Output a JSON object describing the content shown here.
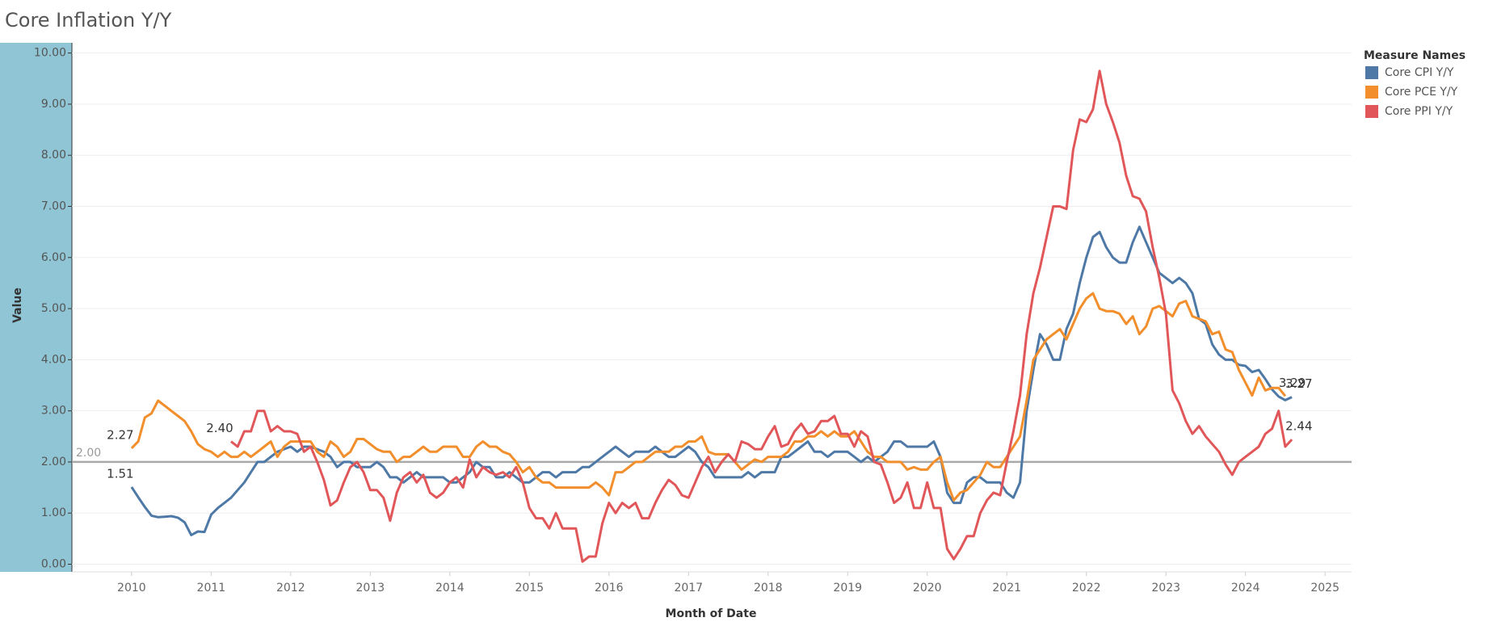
{
  "chart_data": {
    "type": "line",
    "title": "Core Inflation Y/Y",
    "x_label": "Month of Date",
    "y_label": "Value",
    "legend_title": "Measure Names",
    "legend": "right",
    "x": [
      "2010-01",
      "2010-02",
      "2010-03",
      "2010-04",
      "2010-05",
      "2010-06",
      "2010-07",
      "2010-08",
      "2010-09",
      "2010-10",
      "2010-11",
      "2010-12",
      "2011-01",
      "2011-02",
      "2011-03",
      "2011-04",
      "2011-05",
      "2011-06",
      "2011-07",
      "2011-08",
      "2011-09",
      "2011-10",
      "2011-11",
      "2011-12",
      "2012-01",
      "2012-02",
      "2012-03",
      "2012-04",
      "2012-05",
      "2012-06",
      "2012-07",
      "2012-08",
      "2012-09",
      "2012-10",
      "2012-11",
      "2012-12",
      "2013-01",
      "2013-02",
      "2013-03",
      "2013-04",
      "2013-05",
      "2013-06",
      "2013-07",
      "2013-08",
      "2013-09",
      "2013-10",
      "2013-11",
      "2013-12",
      "2014-01",
      "2014-02",
      "2014-03",
      "2014-04",
      "2014-05",
      "2014-06",
      "2014-07",
      "2014-08",
      "2014-09",
      "2014-10",
      "2014-11",
      "2014-12",
      "2015-01",
      "2015-02",
      "2015-03",
      "2015-04",
      "2015-05",
      "2015-06",
      "2015-07",
      "2015-08",
      "2015-09",
      "2015-10",
      "2015-11",
      "2015-12",
      "2016-01",
      "2016-02",
      "2016-03",
      "2016-04",
      "2016-05",
      "2016-06",
      "2016-07",
      "2016-08",
      "2016-09",
      "2016-10",
      "2016-11",
      "2016-12",
      "2017-01",
      "2017-02",
      "2017-03",
      "2017-04",
      "2017-05",
      "2017-06",
      "2017-07",
      "2017-08",
      "2017-09",
      "2017-10",
      "2017-11",
      "2017-12",
      "2018-01",
      "2018-02",
      "2018-03",
      "2018-04",
      "2018-05",
      "2018-06",
      "2018-07",
      "2018-08",
      "2018-09",
      "2018-10",
      "2018-11",
      "2018-12",
      "2019-01",
      "2019-02",
      "2019-03",
      "2019-04",
      "2019-05",
      "2019-06",
      "2019-07",
      "2019-08",
      "2019-09",
      "2019-10",
      "2019-11",
      "2019-12",
      "2020-01",
      "2020-02",
      "2020-03",
      "2020-04",
      "2020-05",
      "2020-06",
      "2020-07",
      "2020-08",
      "2020-09",
      "2020-10",
      "2020-11",
      "2020-12",
      "2021-01",
      "2021-02",
      "2021-03",
      "2021-04",
      "2021-05",
      "2021-06",
      "2021-07",
      "2021-08",
      "2021-09",
      "2021-10",
      "2021-11",
      "2021-12",
      "2022-01",
      "2022-02",
      "2022-03",
      "2022-04",
      "2022-05",
      "2022-06",
      "2022-07",
      "2022-08",
      "2022-09",
      "2022-10",
      "2022-11",
      "2022-12",
      "2023-01",
      "2023-02",
      "2023-03",
      "2023-04",
      "2023-05",
      "2023-06",
      "2023-07",
      "2023-08",
      "2023-09",
      "2023-10",
      "2023-11",
      "2023-12",
      "2024-01",
      "2024-02",
      "2024-03",
      "2024-04",
      "2024-05",
      "2024-06",
      "2024-07",
      "2024-08"
    ],
    "series": [
      {
        "name": "Core CPI Y/Y",
        "color": "#4e79a7",
        "values": [
          1.51,
          1.31,
          1.12,
          0.95,
          0.92,
          0.93,
          0.94,
          0.91,
          0.82,
          0.57,
          0.64,
          0.63,
          0.97,
          1.1,
          1.2,
          1.3,
          1.45,
          1.6,
          1.8,
          2.0,
          2.0,
          2.1,
          2.2,
          2.25,
          2.3,
          2.2,
          2.3,
          2.3,
          2.25,
          2.2,
          2.1,
          1.9,
          2.0,
          2.0,
          1.9,
          1.9,
          1.9,
          2.0,
          1.9,
          1.7,
          1.7,
          1.6,
          1.7,
          1.8,
          1.7,
          1.7,
          1.7,
          1.7,
          1.6,
          1.6,
          1.7,
          1.8,
          2.0,
          1.9,
          1.9,
          1.7,
          1.7,
          1.8,
          1.7,
          1.6,
          1.6,
          1.7,
          1.8,
          1.8,
          1.7,
          1.8,
          1.8,
          1.8,
          1.9,
          1.9,
          2.0,
          2.1,
          2.2,
          2.3,
          2.2,
          2.1,
          2.2,
          2.2,
          2.2,
          2.3,
          2.2,
          2.1,
          2.1,
          2.2,
          2.3,
          2.2,
          2.0,
          1.9,
          1.7,
          1.7,
          1.7,
          1.7,
          1.7,
          1.8,
          1.7,
          1.8,
          1.8,
          1.8,
          2.1,
          2.1,
          2.2,
          2.3,
          2.4,
          2.2,
          2.2,
          2.1,
          2.2,
          2.2,
          2.2,
          2.1,
          2.0,
          2.1,
          2.0,
          2.1,
          2.2,
          2.4,
          2.4,
          2.3,
          2.3,
          2.3,
          2.3,
          2.4,
          2.1,
          1.4,
          1.2,
          1.2,
          1.6,
          1.7,
          1.7,
          1.6,
          1.6,
          1.6,
          1.4,
          1.3,
          1.6,
          3.0,
          3.8,
          4.5,
          4.3,
          4.0,
          4.0,
          4.6,
          4.9,
          5.5,
          6.0,
          6.4,
          6.5,
          6.2,
          6.0,
          5.9,
          5.9,
          6.3,
          6.6,
          6.3,
          6.0,
          5.7,
          5.6,
          5.5,
          5.6,
          5.5,
          5.3,
          4.8,
          4.7,
          4.3,
          4.1,
          4.0,
          4.0,
          3.9,
          3.88,
          3.76,
          3.8,
          3.62,
          3.42,
          3.28,
          3.21,
          3.27
        ]
      },
      {
        "name": "Core PCE Y/Y",
        "color": "#f28e2b",
        "values": [
          2.27,
          2.4,
          2.87,
          2.95,
          3.2,
          3.1,
          3.0,
          2.9,
          2.8,
          2.6,
          2.35,
          2.25,
          2.2,
          2.1,
          2.2,
          2.1,
          2.1,
          2.2,
          2.1,
          2.2,
          2.3,
          2.4,
          2.1,
          2.3,
          2.4,
          2.4,
          2.4,
          2.4,
          2.2,
          2.1,
          2.4,
          2.3,
          2.1,
          2.2,
          2.45,
          2.45,
          2.35,
          2.25,
          2.2,
          2.2,
          2.0,
          2.1,
          2.1,
          2.2,
          2.3,
          2.2,
          2.2,
          2.3,
          2.3,
          2.3,
          2.1,
          2.1,
          2.3,
          2.4,
          2.3,
          2.3,
          2.2,
          2.15,
          2.0,
          1.8,
          1.9,
          1.7,
          1.6,
          1.6,
          1.5,
          1.5,
          1.5,
          1.5,
          1.5,
          1.5,
          1.6,
          1.5,
          1.35,
          1.8,
          1.8,
          1.9,
          2.0,
          2.0,
          2.1,
          2.2,
          2.2,
          2.2,
          2.3,
          2.3,
          2.4,
          2.4,
          2.5,
          2.2,
          2.15,
          2.15,
          2.15,
          2.0,
          1.85,
          1.95,
          2.05,
          2.0,
          2.1,
          2.1,
          2.1,
          2.2,
          2.4,
          2.4,
          2.5,
          2.5,
          2.6,
          2.5,
          2.6,
          2.5,
          2.5,
          2.6,
          2.4,
          2.2,
          2.1,
          2.1,
          2.0,
          2.0,
          2.0,
          1.85,
          1.9,
          1.85,
          1.85,
          2.0,
          2.1,
          1.6,
          1.25,
          1.4,
          1.45,
          1.6,
          1.75,
          2.0,
          1.9,
          1.9,
          2.1,
          2.3,
          2.5,
          3.2,
          4.0,
          4.2,
          4.4,
          4.5,
          4.6,
          4.4,
          4.7,
          5.0,
          5.2,
          5.3,
          5.0,
          4.95,
          4.95,
          4.9,
          4.7,
          4.85,
          4.5,
          4.65,
          5.0,
          5.05,
          4.95,
          4.85,
          5.1,
          5.15,
          4.85,
          4.8,
          4.75,
          4.5,
          4.55,
          4.2,
          4.15,
          3.8,
          3.55,
          3.3,
          3.65,
          3.4,
          3.45,
          3.45,
          3.29,
          null
        ]
      },
      {
        "name": "Core PPI Y/Y",
        "color": "#e15759",
        "values": [
          null,
          null,
          null,
          null,
          null,
          null,
          null,
          null,
          null,
          null,
          null,
          null,
          null,
          null,
          null,
          2.4,
          2.3,
          2.6,
          2.6,
          3.0,
          3.0,
          2.6,
          2.7,
          2.6,
          2.6,
          2.55,
          2.2,
          2.3,
          2.0,
          1.65,
          1.15,
          1.25,
          1.6,
          1.9,
          2.0,
          1.8,
          1.45,
          1.45,
          1.3,
          0.85,
          1.4,
          1.7,
          1.8,
          1.6,
          1.75,
          1.4,
          1.3,
          1.4,
          1.6,
          1.7,
          1.5,
          2.05,
          1.7,
          1.9,
          1.8,
          1.75,
          1.8,
          1.7,
          1.9,
          1.6,
          1.1,
          0.9,
          0.9,
          0.7,
          1.0,
          0.7,
          0.7,
          0.7,
          0.05,
          0.15,
          0.15,
          0.8,
          1.2,
          1.0,
          1.2,
          1.1,
          1.2,
          0.9,
          0.9,
          1.2,
          1.45,
          1.65,
          1.55,
          1.35,
          1.3,
          1.6,
          1.9,
          2.1,
          1.8,
          2.0,
          2.15,
          2.0,
          2.4,
          2.35,
          2.25,
          2.25,
          2.5,
          2.7,
          2.3,
          2.35,
          2.6,
          2.75,
          2.55,
          2.6,
          2.8,
          2.8,
          2.9,
          2.55,
          2.55,
          2.3,
          2.6,
          2.5,
          2.0,
          1.95,
          1.6,
          1.2,
          1.3,
          1.6,
          1.1,
          1.1,
          1.6,
          1.1,
          1.1,
          0.3,
          0.1,
          0.3,
          0.55,
          0.55,
          1.0,
          1.25,
          1.4,
          1.35,
          2.0,
          2.6,
          3.3,
          4.5,
          5.3,
          5.8,
          6.4,
          7.0,
          7.0,
          6.95,
          8.1,
          8.7,
          8.65,
          8.9,
          9.65,
          9.0,
          8.65,
          8.25,
          7.6,
          7.2,
          7.15,
          6.9,
          6.2,
          5.6,
          4.9,
          3.4,
          3.15,
          2.8,
          2.55,
          2.7,
          2.5,
          2.35,
          2.2,
          1.95,
          1.75,
          2.0,
          2.1,
          2.2,
          2.3,
          2.55,
          2.65,
          3.0,
          2.3,
          2.44
        ],
        "value_labels": [
          null,
          null,
          null,
          null,
          null,
          null,
          null,
          null,
          null,
          null,
          null,
          null,
          null,
          null,
          null,
          "2.40",
          null,
          null,
          null,
          null,
          null,
          null,
          null,
          null,
          null,
          null,
          null,
          null,
          null,
          null,
          null,
          null,
          null,
          null,
          null,
          null,
          null,
          null,
          null,
          null,
          null,
          null,
          null,
          null,
          null,
          null,
          null,
          null,
          null,
          null,
          null,
          null,
          null,
          null,
          null,
          null,
          null,
          null,
          null,
          null,
          null,
          null,
          null,
          null,
          null,
          null,
          null,
          null,
          null,
          null,
          null,
          null,
          null,
          null,
          null,
          null,
          null,
          null,
          null,
          null,
          null,
          null,
          null,
          null,
          null,
          null,
          null,
          null,
          null,
          null,
          null,
          null,
          null,
          null,
          null,
          null,
          null,
          null,
          null,
          null,
          null,
          null,
          null,
          null,
          null,
          null,
          null,
          null,
          null,
          null,
          null,
          null,
          null,
          null,
          null,
          null,
          null,
          null,
          null,
          null,
          null,
          null,
          null,
          null,
          null,
          null,
          null,
          null,
          null,
          null,
          null,
          null,
          null,
          null,
          null,
          null,
          null,
          null,
          null,
          null,
          null,
          null,
          null,
          null,
          null,
          null,
          null,
          null,
          null,
          null,
          null,
          null,
          null,
          null,
          null,
          null,
          null,
          null,
          null,
          null,
          null,
          null,
          null,
          null,
          null,
          null,
          null,
          null,
          null,
          null,
          null,
          null,
          null,
          null,
          null,
          "2.44"
        ]
      }
    ],
    "reference_line": {
      "value": 2,
      "label": "2.00",
      "color": "#a9a9a9"
    },
    "xlim": [
      "2009-04",
      "2025-05"
    ],
    "xticks": [
      {
        "value": "2010-01",
        "label": "2010"
      },
      {
        "value": "2011-01",
        "label": "2011"
      },
      {
        "value": "2012-01",
        "label": "2012"
      },
      {
        "value": "2013-01",
        "label": "2013"
      },
      {
        "value": "2014-01",
        "label": "2014"
      },
      {
        "value": "2015-01",
        "label": "2015"
      },
      {
        "value": "2016-01",
        "label": "2016"
      },
      {
        "value": "2017-01",
        "label": "2017"
      },
      {
        "value": "2018-01",
        "label": "2018"
      },
      {
        "value": "2019-01",
        "label": "2019"
      },
      {
        "value": "2020-01",
        "label": "2020"
      },
      {
        "value": "2021-01",
        "label": "2021"
      },
      {
        "value": "2022-01",
        "label": "2022"
      },
      {
        "value": "2023-01",
        "label": "2023"
      },
      {
        "value": "2024-01",
        "label": "2024"
      },
      {
        "value": "2025-01",
        "label": "2025"
      }
    ],
    "ylim": [
      -0.15,
      10.2
    ],
    "yticks": [
      {
        "value": 0,
        "label": "0.00"
      },
      {
        "value": 1,
        "label": "1.00"
      },
      {
        "value": 2,
        "label": "2.00"
      },
      {
        "value": 3,
        "label": "3.00"
      },
      {
        "value": 4,
        "label": "4.00"
      },
      {
        "value": 5,
        "label": "5.00"
      },
      {
        "value": 6,
        "label": "6.00"
      },
      {
        "value": 7,
        "label": "7.00"
      },
      {
        "value": 8,
        "label": "8.00"
      },
      {
        "value": 9,
        "label": "9.00"
      },
      {
        "value": 10,
        "label": "10.00"
      }
    ],
    "grid": true
  }
}
